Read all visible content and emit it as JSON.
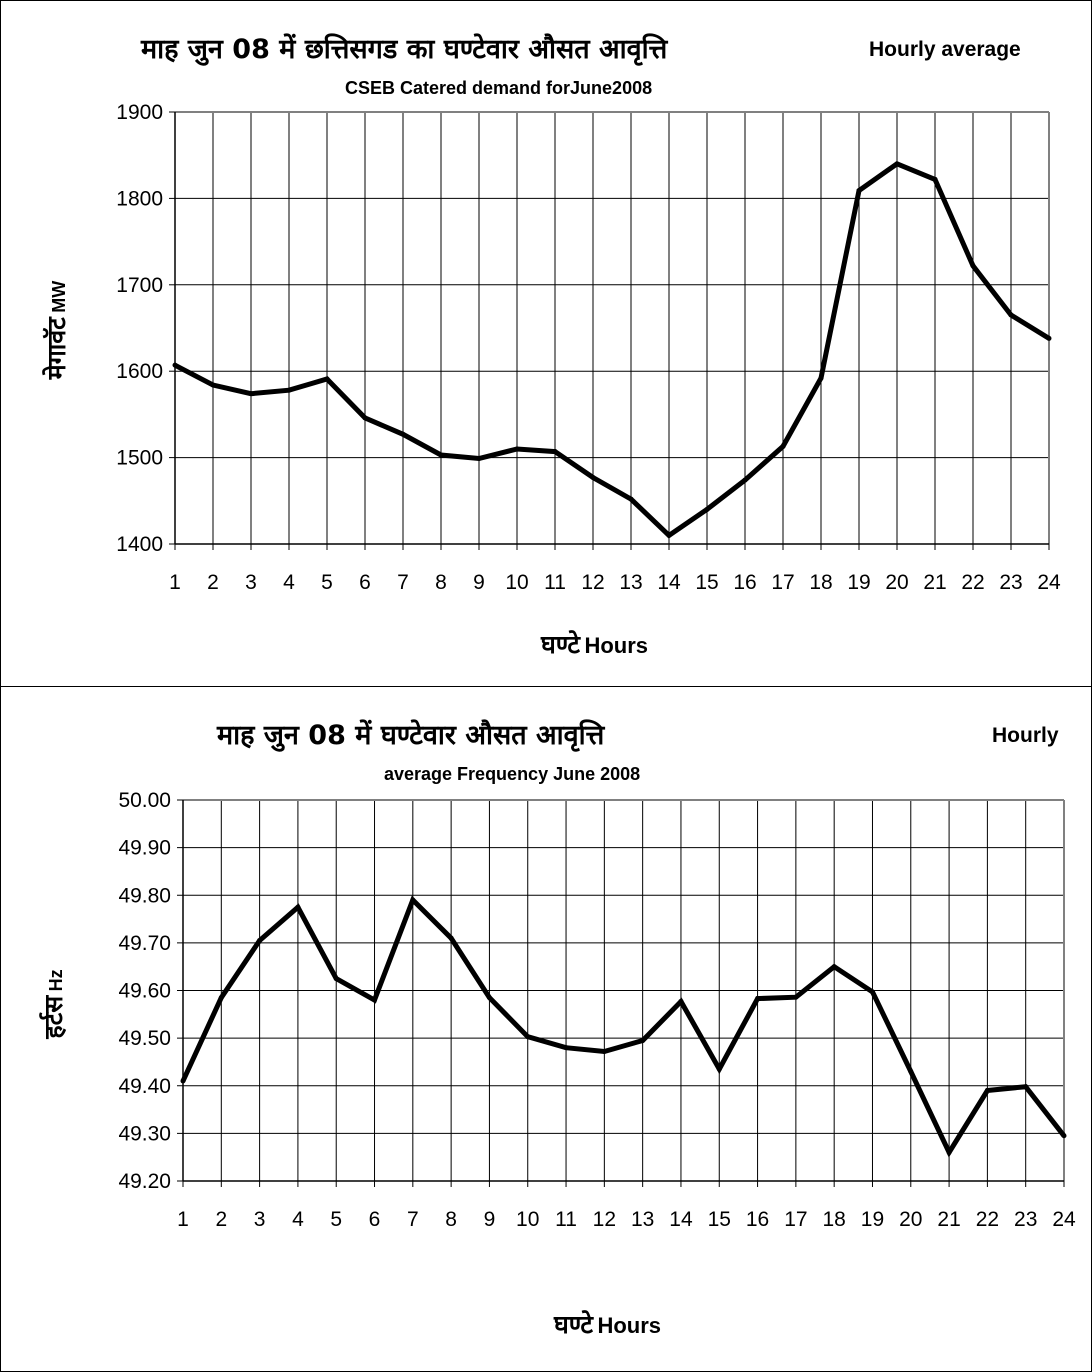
{
  "chart_data": [
    {
      "type": "line",
      "title": "माह जुन 08 में छत्तिसगड का घण्टेवार औसत आवृत्ति",
      "title_right": "Hourly average",
      "subtitle": "CSEB Catered demand forJune2008",
      "xlabel_hindi": "घण्टे",
      "xlabel_english": "Hours",
      "ylabel_hindi": "मेगावॅट",
      "ylabel_english": "MW",
      "ylim": [
        1400,
        1900
      ],
      "ytick_step": 100,
      "ytick_decimals": 0,
      "grid": true,
      "x": [
        1,
        2,
        3,
        4,
        5,
        6,
        7,
        8,
        9,
        10,
        11,
        12,
        13,
        14,
        15,
        16,
        17,
        18,
        19,
        20,
        21,
        22,
        23,
        24
      ],
      "series": [
        {
          "values": [
            1607,
            1584,
            1574,
            1578,
            1591,
            1546,
            1527,
            1503,
            1499,
            1510,
            1507,
            1477,
            1452,
            1410,
            1440,
            1474,
            1513,
            1592,
            1809,
            1840,
            1822,
            1722,
            1665,
            1638
          ],
          "color": "#000000"
        }
      ]
    },
    {
      "type": "line",
      "title": "माह जुन 08 में घण्टेवार औसत आवृत्ति",
      "title_right": "Hourly",
      "subtitle": "average Frequency June 2008",
      "xlabel_hindi": "घण्टे",
      "xlabel_english": "Hours",
      "ylabel_hindi": "हर्टस",
      "ylabel_english": "Hz",
      "ylim": [
        49.2,
        50.0
      ],
      "ytick_step": 0.1,
      "ytick_decimals": 2,
      "grid": true,
      "x": [
        1,
        2,
        3,
        4,
        5,
        6,
        7,
        8,
        9,
        10,
        11,
        12,
        13,
        14,
        15,
        16,
        17,
        18,
        19,
        20,
        21,
        22,
        23,
        24
      ],
      "series": [
        {
          "values": [
            49.41,
            49.585,
            49.705,
            49.775,
            49.625,
            49.58,
            49.79,
            49.71,
            49.585,
            49.503,
            49.48,
            49.472,
            49.495,
            49.577,
            49.435,
            49.583,
            49.586,
            49.65,
            49.597,
            49.43,
            49.26,
            49.39,
            49.398,
            49.295
          ],
          "color": "#000000"
        }
      ]
    }
  ]
}
